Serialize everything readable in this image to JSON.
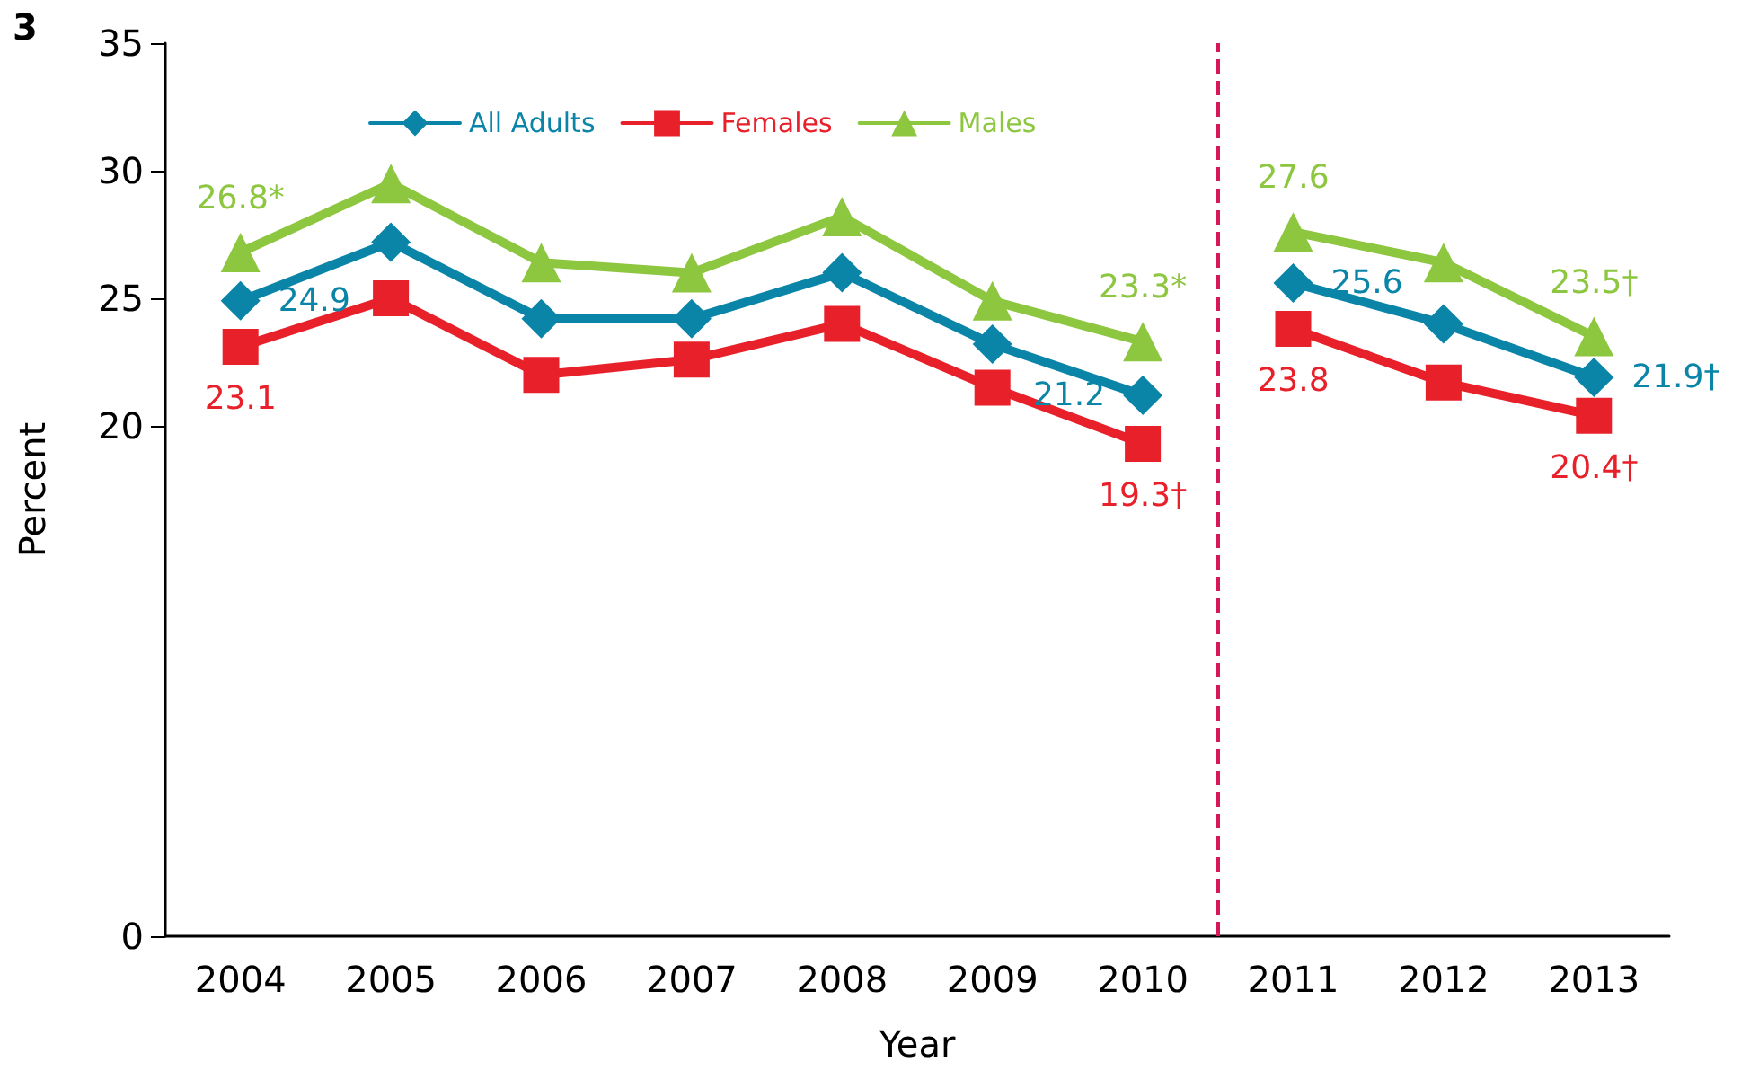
{
  "chart_data": {
    "type": "line",
    "title": "3",
    "xlabel": "Year",
    "ylabel": "Percent",
    "x": [
      2004,
      2005,
      2006,
      2007,
      2008,
      2009,
      2010,
      2011,
      2012,
      2013
    ],
    "series": [
      {
        "name": "All Adults",
        "color": "#0a85a8",
        "marker": "diamond",
        "values": [
          24.9,
          27.2,
          24.2,
          24.2,
          26.0,
          23.2,
          21.2,
          25.6,
          24.0,
          21.9
        ],
        "value_labels": [
          "24.9",
          null,
          null,
          null,
          null,
          null,
          "21.2",
          "25.6",
          null,
          "21.9†"
        ]
      },
      {
        "name": "Females",
        "color": "#e8202a",
        "marker": "square",
        "values": [
          23.1,
          25.0,
          22.0,
          22.6,
          24.0,
          21.5,
          19.3,
          23.8,
          21.7,
          20.4
        ],
        "value_labels": [
          "23.1",
          null,
          null,
          null,
          null,
          null,
          "19.3†",
          "23.8",
          null,
          "20.4†"
        ]
      },
      {
        "name": "Males",
        "color": "#8dc63f",
        "marker": "triangle",
        "values": [
          26.8,
          29.5,
          26.4,
          26.0,
          28.2,
          24.9,
          23.3,
          27.6,
          26.4,
          23.5
        ],
        "value_labels": [
          "26.8*",
          null,
          null,
          null,
          null,
          null,
          "23.3*",
          "27.6",
          null,
          "23.5†"
        ]
      }
    ],
    "xlim": [
      2003.5,
      2013.5
    ],
    "xticks": [
      2004,
      2005,
      2006,
      2007,
      2008,
      2009,
      2010,
      2011,
      2012,
      2013
    ],
    "ylim": [
      0,
      35
    ],
    "yticks": [
      0,
      20,
      25,
      30,
      35
    ],
    "ref_lines": [
      {
        "axis": "x",
        "value": 2010.5,
        "color": "#d6185a",
        "line_style": "dashed"
      }
    ],
    "grid": false,
    "legend": "top",
    "line_style": "solid"
  }
}
